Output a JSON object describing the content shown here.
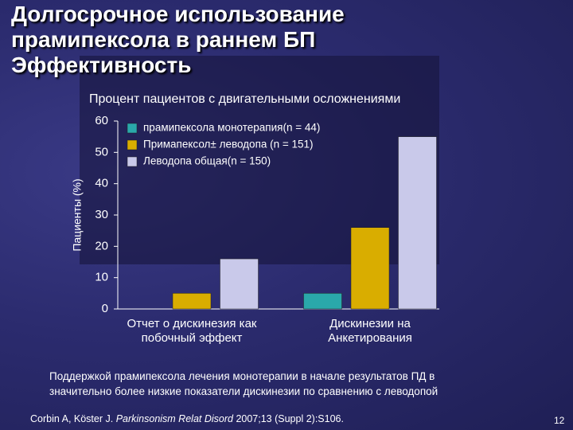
{
  "chart_data": {
    "type": "bar",
    "title": "Долгосрочное использование прамипексола в раннем БП Эффективность",
    "subtitle": "Процент пациентов с двигательными осложнениями",
    "y_label": "Пациенты (%)",
    "categories": [
      "Отчет о дискинезия как побочный эффект",
      "Дискинезии на Анкетирования"
    ],
    "series": [
      {
        "name": "прамипексола монотерапия(n = 44)",
        "color": "#2aa8aa",
        "values": [
          0,
          5
        ]
      },
      {
        "name": "Примапексол± леводопа (n = 151)",
        "color": "#d9ad00",
        "values": [
          5,
          26
        ]
      },
      {
        "name": "Леводопа общая(n = 150)",
        "color": "#c9c9ea",
        "values": [
          16,
          55
        ]
      }
    ],
    "ylim": [
      0,
      60
    ],
    "yticks": [
      0,
      10,
      20,
      30,
      40,
      50,
      60
    ],
    "grid": false
  },
  "footnote": [
    "Поддержкой прамипексола лечения монотерапии в начале результатов ПД в",
    "значительно более низкие показатели дискинезии по сравнению с леводопой"
  ],
  "citation": {
    "authors": "Corbin A, Köster J. ",
    "journal": "Parkinsonism Relat Disord",
    "details": " 2007;13 (Suppl 2):S106."
  },
  "page_number": "12"
}
